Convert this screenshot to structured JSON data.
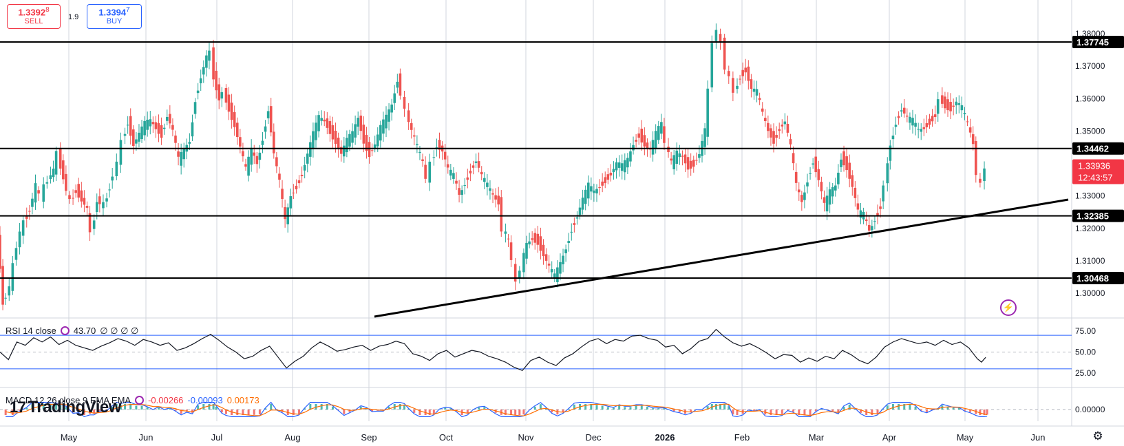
{
  "trade": {
    "sell_main": "1.3392",
    "sell_sup": "8",
    "sell_label": "SELL",
    "spread": "1.9",
    "buy_main": "1.3394",
    "buy_sup": "7",
    "buy_label": "BUY"
  },
  "rsi_legend": {
    "name": "RSI 14 close",
    "value": "43.70",
    "extras": "∅ ∅ ∅ ∅"
  },
  "macd_legend": {
    "name": "MACD 12 26 close 9 EMA EMA",
    "hist": "-0.00266",
    "macd": "-0.00093",
    "signal": "0.00173"
  },
  "brand": {
    "logo_text": "TradingView"
  },
  "colors": {
    "up": "#26a69a",
    "down": "#ef5350",
    "price_badge": "#f23645",
    "rsi_line": "#131722",
    "macd_line": "#2962ff",
    "signal_line": "#ff6d00",
    "band": "#2962ff"
  },
  "chart_data": [
    {
      "type": "candlestick",
      "title": "",
      "y_ticks": [
        "1.30000",
        "1.31000",
        "1.32000",
        "1.33000",
        "1.34000",
        "1.35000",
        "1.36000",
        "1.37000",
        "1.38000"
      ],
      "x_ticks": [
        "May",
        "Jun",
        "Jul",
        "Aug",
        "Sep",
        "Oct",
        "Nov",
        "Dec",
        "2026",
        "Feb",
        "Mar",
        "Apr",
        "May",
        "Jun"
      ],
      "ylim": [
        1.2948,
        1.3875
      ],
      "horizontal_levels": [
        {
          "value": 1.37745,
          "label": "1.37745"
        },
        {
          "value": 1.34462,
          "label": "1.34462"
        },
        {
          "value": 1.32385,
          "label": "1.32385"
        },
        {
          "value": 1.30468,
          "label": "1.30468"
        }
      ],
      "trendline": {
        "from": {
          "x": "Sep (approx)",
          "y": 1.2915
        },
        "to": {
          "x": "end of range",
          "y": 1.3289
        }
      },
      "last_price": {
        "label": "1.33936",
        "countdown": "12:43:57"
      },
      "close_path_points": [
        [
          0,
          1.318
        ],
        [
          8,
          1.297
        ],
        [
          18,
          1.302
        ],
        [
          28,
          1.315
        ],
        [
          38,
          1.322
        ],
        [
          46,
          1.326
        ],
        [
          55,
          1.333
        ],
        [
          62,
          1.33
        ],
        [
          72,
          1.335
        ],
        [
          80,
          1.338
        ],
        [
          86,
          1.343
        ],
        [
          94,
          1.336
        ],
        [
          104,
          1.328
        ],
        [
          112,
          1.332
        ],
        [
          120,
          1.329
        ],
        [
          128,
          1.326
        ],
        [
          134,
          1.318
        ],
        [
          142,
          1.329
        ],
        [
          152,
          1.327
        ],
        [
          160,
          1.333
        ],
        [
          166,
          1.337
        ],
        [
          172,
          1.34
        ],
        [
          178,
          1.347
        ],
        [
          186,
          1.353
        ],
        [
          194,
          1.346
        ],
        [
          202,
          1.349
        ],
        [
          210,
          1.352
        ],
        [
          218,
          1.353
        ],
        [
          226,
          1.351
        ],
        [
          234,
          1.349
        ],
        [
          242,
          1.355
        ],
        [
          250,
          1.35
        ],
        [
          258,
          1.341
        ],
        [
          266,
          1.344
        ],
        [
          274,
          1.347
        ],
        [
          282,
          1.36
        ],
        [
          290,
          1.367
        ],
        [
          298,
          1.373
        ],
        [
          304,
          1.374
        ],
        [
          308,
          1.367
        ],
        [
          316,
          1.36
        ],
        [
          322,
          1.362
        ],
        [
          330,
          1.357
        ],
        [
          338,
          1.352
        ],
        [
          346,
          1.345
        ],
        [
          354,
          1.338
        ],
        [
          362,
          1.344
        ],
        [
          370,
          1.34
        ],
        [
          378,
          1.348
        ],
        [
          386,
          1.357
        ],
        [
          394,
          1.343
        ],
        [
          402,
          1.334
        ],
        [
          410,
          1.322
        ],
        [
          418,
          1.33
        ],
        [
          426,
          1.333
        ],
        [
          434,
          1.337
        ],
        [
          442,
          1.343
        ],
        [
          450,
          1.349
        ],
        [
          458,
          1.354
        ],
        [
          466,
          1.353
        ],
        [
          474,
          1.35
        ],
        [
          482,
          1.347
        ],
        [
          490,
          1.343
        ],
        [
          498,
          1.347
        ],
        [
          506,
          1.349
        ],
        [
          514,
          1.354
        ],
        [
          522,
          1.347
        ],
        [
          530,
          1.343
        ],
        [
          538,
          1.346
        ],
        [
          546,
          1.351
        ],
        [
          554,
          1.354
        ],
        [
          562,
          1.358
        ],
        [
          570,
          1.366
        ],
        [
          576,
          1.362
        ],
        [
          582,
          1.356
        ],
        [
          590,
          1.35
        ],
        [
          598,
          1.345
        ],
        [
          606,
          1.34
        ],
        [
          612,
          1.335
        ],
        [
          618,
          1.34
        ],
        [
          626,
          1.346
        ],
        [
          634,
          1.344
        ],
        [
          642,
          1.338
        ],
        [
          650,
          1.336
        ],
        [
          658,
          1.33
        ],
        [
          666,
          1.334
        ],
        [
          674,
          1.338
        ],
        [
          682,
          1.341
        ],
        [
          690,
          1.336
        ],
        [
          698,
          1.333
        ],
        [
          706,
          1.33
        ],
        [
          714,
          1.328
        ],
        [
          720,
          1.32
        ],
        [
          728,
          1.316
        ],
        [
          734,
          1.31
        ],
        [
          740,
          1.303
        ],
        [
          746,
          1.308
        ],
        [
          754,
          1.315
        ],
        [
          762,
          1.317
        ],
        [
          770,
          1.316
        ],
        [
          778,
          1.312
        ],
        [
          786,
          1.308
        ],
        [
          794,
          1.305
        ],
        [
          802,
          1.309
        ],
        [
          810,
          1.314
        ],
        [
          818,
          1.32
        ],
        [
          826,
          1.324
        ],
        [
          834,
          1.329
        ],
        [
          842,
          1.333
        ],
        [
          850,
          1.331
        ],
        [
          858,
          1.333
        ],
        [
          866,
          1.335
        ],
        [
          874,
          1.337
        ],
        [
          882,
          1.34
        ],
        [
          890,
          1.339
        ],
        [
          898,
          1.341
        ],
        [
          906,
          1.346
        ],
        [
          914,
          1.349
        ],
        [
          922,
          1.346
        ],
        [
          930,
          1.344
        ],
        [
          938,
          1.349
        ],
        [
          946,
          1.352
        ],
        [
          952,
          1.346
        ],
        [
          960,
          1.34
        ],
        [
          968,
          1.343
        ],
        [
          976,
          1.342
        ],
        [
          984,
          1.339
        ],
        [
          992,
          1.34
        ],
        [
          1000,
          1.343
        ],
        [
          1008,
          1.35
        ],
        [
          1014,
          1.362
        ],
        [
          1020,
          1.378
        ],
        [
          1026,
          1.381
        ],
        [
          1032,
          1.377
        ],
        [
          1038,
          1.37
        ],
        [
          1044,
          1.366
        ],
        [
          1050,
          1.362
        ],
        [
          1058,
          1.367
        ],
        [
          1066,
          1.369
        ],
        [
          1074,
          1.363
        ],
        [
          1082,
          1.362
        ],
        [
          1090,
          1.355
        ],
        [
          1098,
          1.35
        ],
        [
          1106,
          1.347
        ],
        [
          1114,
          1.351
        ],
        [
          1122,
          1.353
        ],
        [
          1130,
          1.345
        ],
        [
          1138,
          1.333
        ],
        [
          1146,
          1.328
        ],
        [
          1154,
          1.335
        ],
        [
          1162,
          1.341
        ],
        [
          1170,
          1.335
        ],
        [
          1178,
          1.327
        ],
        [
          1186,
          1.331
        ],
        [
          1194,
          1.333
        ],
        [
          1202,
          1.342
        ],
        [
          1210,
          1.339
        ],
        [
          1218,
          1.333
        ],
        [
          1226,
          1.325
        ],
        [
          1234,
          1.324
        ],
        [
          1242,
          1.319
        ],
        [
          1250,
          1.323
        ],
        [
          1258,
          1.327
        ],
        [
          1264,
          1.334
        ],
        [
          1272,
          1.346
        ],
        [
          1280,
          1.353
        ],
        [
          1288,
          1.357
        ],
        [
          1296,
          1.354
        ],
        [
          1304,
          1.353
        ],
        [
          1312,
          1.35
        ],
        [
          1320,
          1.351
        ],
        [
          1328,
          1.353
        ],
        [
          1336,
          1.355
        ],
        [
          1342,
          1.36
        ],
        [
          1350,
          1.358
        ],
        [
          1358,
          1.357
        ],
        [
          1366,
          1.359
        ],
        [
          1374,
          1.357
        ],
        [
          1382,
          1.352
        ],
        [
          1390,
          1.346
        ],
        [
          1396,
          1.337
        ],
        [
          1402,
          1.333
        ],
        [
          1406,
          1.3394
        ]
      ]
    },
    {
      "type": "line",
      "title": "RSI 14 close",
      "y_ticks": [
        "25.00",
        "50.00",
        "75.00"
      ],
      "ylim": [
        20,
        80
      ],
      "bands": [
        30,
        70
      ],
      "midline": 50,
      "last_value": 43.7,
      "series_points": [
        [
          0,
          50
        ],
        [
          12,
          41
        ],
        [
          24,
          62
        ],
        [
          36,
          58
        ],
        [
          48,
          67
        ],
        [
          60,
          62
        ],
        [
          72,
          68
        ],
        [
          84,
          59
        ],
        [
          96,
          64
        ],
        [
          108,
          58
        ],
        [
          120,
          55
        ],
        [
          132,
          52
        ],
        [
          144,
          57
        ],
        [
          156,
          61
        ],
        [
          168,
          66
        ],
        [
          180,
          63
        ],
        [
          192,
          58
        ],
        [
          204,
          65
        ],
        [
          216,
          62
        ],
        [
          228,
          58
        ],
        [
          240,
          61
        ],
        [
          252,
          52
        ],
        [
          264,
          55
        ],
        [
          276,
          60
        ],
        [
          288,
          66
        ],
        [
          300,
          71
        ],
        [
          312,
          64
        ],
        [
          324,
          56
        ],
        [
          336,
          50
        ],
        [
          348,
          42
        ],
        [
          360,
          45
        ],
        [
          372,
          52
        ],
        [
          384,
          57
        ],
        [
          396,
          44
        ],
        [
          408,
          31
        ],
        [
          420,
          39
        ],
        [
          432,
          45
        ],
        [
          444,
          55
        ],
        [
          456,
          62
        ],
        [
          468,
          57
        ],
        [
          480,
          51
        ],
        [
          492,
          53
        ],
        [
          504,
          56
        ],
        [
          516,
          58
        ],
        [
          528,
          52
        ],
        [
          540,
          57
        ],
        [
          552,
          59
        ],
        [
          564,
          63
        ],
        [
          576,
          60
        ],
        [
          588,
          48
        ],
        [
          600,
          45
        ],
        [
          612,
          40
        ],
        [
          624,
          48
        ],
        [
          636,
          52
        ],
        [
          648,
          44
        ],
        [
          660,
          48
        ],
        [
          672,
          52
        ],
        [
          684,
          50
        ],
        [
          696,
          45
        ],
        [
          708,
          42
        ],
        [
          720,
          38
        ],
        [
          732,
          32
        ],
        [
          744,
          28
        ],
        [
          756,
          40
        ],
        [
          768,
          44
        ],
        [
          780,
          38
        ],
        [
          792,
          34
        ],
        [
          804,
          43
        ],
        [
          816,
          48
        ],
        [
          828,
          56
        ],
        [
          840,
          63
        ],
        [
          852,
          66
        ],
        [
          864,
          60
        ],
        [
          876,
          65
        ],
        [
          888,
          63
        ],
        [
          900,
          69
        ],
        [
          912,
          70
        ],
        [
          924,
          66
        ],
        [
          936,
          64
        ],
        [
          948,
          56
        ],
        [
          960,
          58
        ],
        [
          972,
          48
        ],
        [
          984,
          54
        ],
        [
          996,
          63
        ],
        [
          1008,
          66
        ],
        [
          1020,
          77
        ],
        [
          1032,
          68
        ],
        [
          1044,
          61
        ],
        [
          1056,
          57
        ],
        [
          1068,
          60
        ],
        [
          1080,
          55
        ],
        [
          1092,
          49
        ],
        [
          1104,
          42
        ],
        [
          1116,
          47
        ],
        [
          1128,
          46
        ],
        [
          1140,
          38
        ],
        [
          1152,
          43
        ],
        [
          1164,
          39
        ],
        [
          1176,
          45
        ],
        [
          1188,
          42
        ],
        [
          1200,
          52
        ],
        [
          1212,
          47
        ],
        [
          1224,
          40
        ],
        [
          1236,
          36
        ],
        [
          1248,
          44
        ],
        [
          1260,
          56
        ],
        [
          1272,
          62
        ],
        [
          1284,
          66
        ],
        [
          1296,
          63
        ],
        [
          1308,
          60
        ],
        [
          1320,
          62
        ],
        [
          1332,
          58
        ],
        [
          1344,
          64
        ],
        [
          1356,
          59
        ],
        [
          1368,
          62
        ],
        [
          1380,
          55
        ],
        [
          1392,
          42
        ],
        [
          1398,
          38
        ],
        [
          1404,
          43.7
        ]
      ]
    },
    {
      "type": "bar",
      "title": "MACD 12 26 close 9 EMA EMA",
      "y_ticks": [
        "0.00000"
      ],
      "series": [
        {
          "name": "Histogram",
          "value": -0.00266
        },
        {
          "name": "MACD",
          "value": -0.00093
        },
        {
          "name": "Signal",
          "value": 0.00173
        }
      ]
    }
  ]
}
